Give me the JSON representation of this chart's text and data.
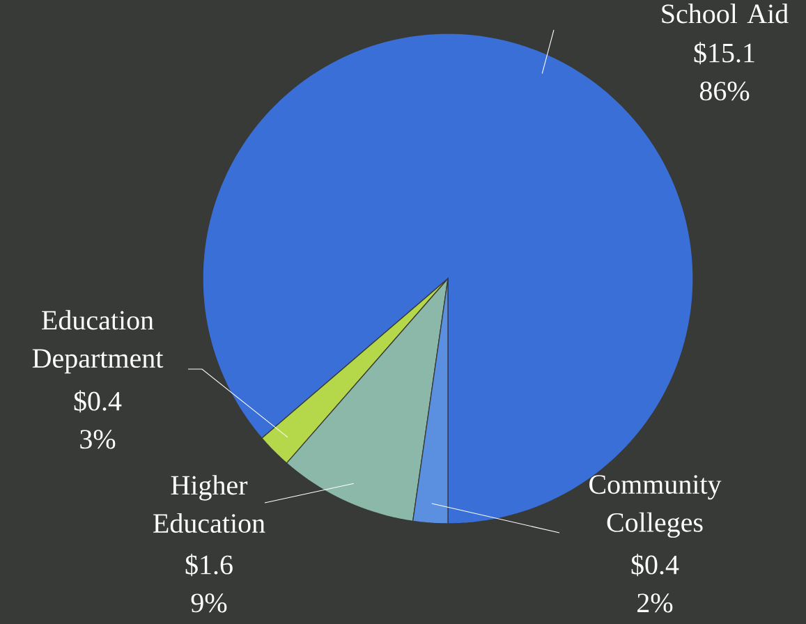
{
  "chart_data": {
    "type": "pie",
    "categories": [
      "School Aid",
      "Education Department",
      "Higher Education",
      "Community Colleges"
    ],
    "values": [
      15.1,
      0.4,
      1.6,
      0.4
    ],
    "colors": [
      "#3a6fd8",
      "#b5d84a",
      "#8bb8a8",
      "#5b8fe0"
    ],
    "value_labels": [
      "$15.1 86%",
      "$0.4 3%",
      "$1.6 9%",
      "$0.4 2%"
    ]
  }
}
